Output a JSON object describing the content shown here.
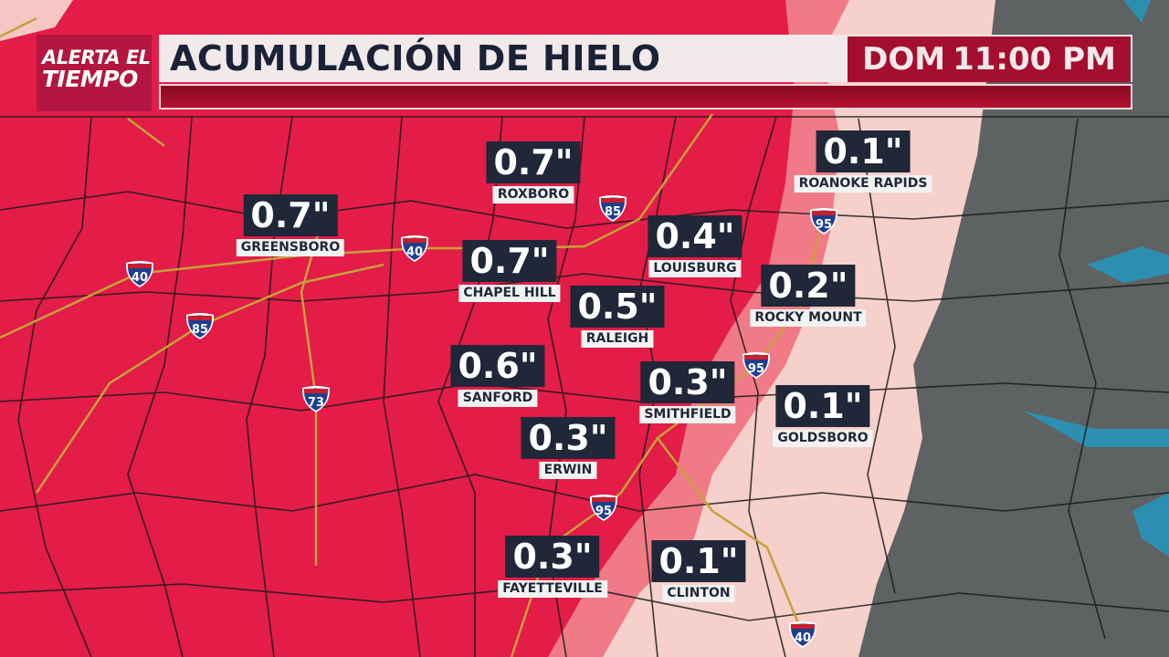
{
  "header": {
    "logo_line1": "ALERTA EL",
    "logo_line2": "TIEMPO",
    "title": "ACUMULACIÓN DE HIELO",
    "day": "DOM",
    "time": "11:00 PM"
  },
  "colors": {
    "heavy_ice": "#e31c48",
    "moderate_ice": "#f07a86",
    "light_ice": "#f6d0cb",
    "no_ice": "#5f6262",
    "water": "#2d8fb0",
    "highway": "#c9a03a",
    "title_bar": "#f1e9ea",
    "accent": "#a40f30"
  },
  "cities": [
    {
      "name": "ROXBORO",
      "value": "0.7\""
    },
    {
      "name": "GREENSBORO",
      "value": "0.7\""
    },
    {
      "name": "CHAPEL HILL",
      "value": "0.7\""
    },
    {
      "name": "LOUISBURG",
      "value": "0.4\""
    },
    {
      "name": "ROANOKE RAPIDS",
      "value": "0.1\""
    },
    {
      "name": "RALEIGH",
      "value": "0.5\""
    },
    {
      "name": "ROCKY MOUNT",
      "value": "0.2\""
    },
    {
      "name": "SANFORD",
      "value": "0.6\""
    },
    {
      "name": "SMITHFIELD",
      "value": "0.3\""
    },
    {
      "name": "GOLDSBORO",
      "value": "0.1\""
    },
    {
      "name": "ERWIN",
      "value": "0.3\""
    },
    {
      "name": "FAYETTEVILLE",
      "value": "0.3\""
    },
    {
      "name": "CLINTON",
      "value": "0.1\""
    }
  ],
  "interstates": [
    "40",
    "85",
    "73",
    "40",
    "85",
    "95",
    "95",
    "95",
    "40"
  ]
}
